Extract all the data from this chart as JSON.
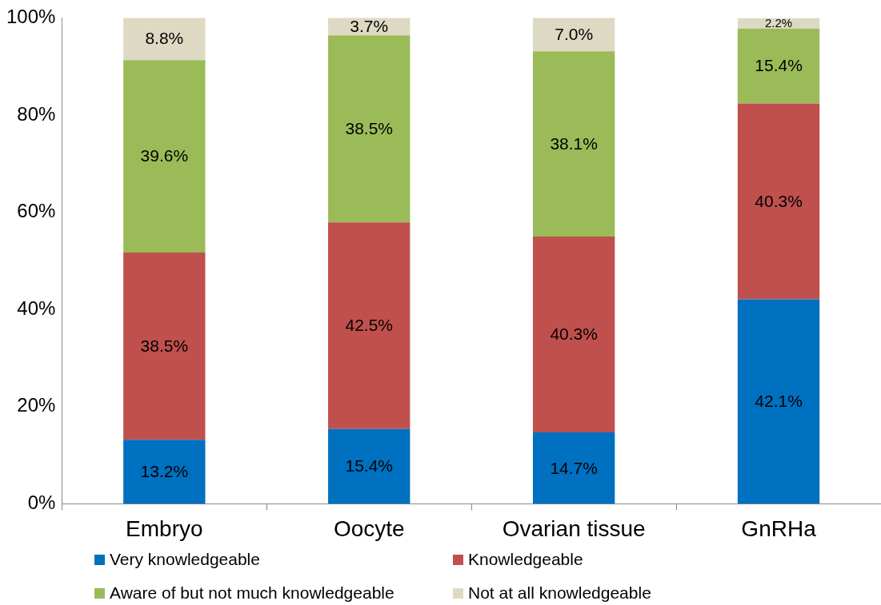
{
  "chart_data": {
    "type": "bar",
    "stacked": true,
    "categories": [
      "Embryo",
      "Oocyte",
      "Ovarian tissue",
      "GnRHa"
    ],
    "series": [
      {
        "name": "Very knowledgeable",
        "color": "#0070c0",
        "values": [
          13.2,
          15.4,
          14.7,
          42.1
        ],
        "value_labels": [
          "13.2%",
          "15.4%",
          "14.7%",
          "42.1%"
        ]
      },
      {
        "name": "Knowledgeable",
        "color": "#c0504d",
        "values": [
          38.5,
          42.5,
          40.3,
          40.3
        ],
        "value_labels": [
          "38.5%",
          "42.5%",
          "40.3%",
          "40.3%"
        ]
      },
      {
        "name": "Aware of but not much knowledgeable",
        "color": "#9bbb59",
        "values": [
          39.6,
          38.5,
          38.1,
          15.4
        ],
        "value_labels": [
          "39.6%",
          "38.5%",
          "38.1%",
          "15.4%"
        ]
      },
      {
        "name": "Not at all knowledgeable",
        "color": "#ddd9c3",
        "values": [
          8.8,
          3.7,
          7.0,
          2.2
        ],
        "value_labels": [
          "8.8%",
          "3.7%",
          "7.0%",
          "2.2%"
        ]
      }
    ],
    "ylim": [
      0,
      100
    ],
    "yticks": [
      {
        "value": 0,
        "label": "0%"
      },
      {
        "value": 20,
        "label": "20%"
      },
      {
        "value": 40,
        "label": "40%"
      },
      {
        "value": 60,
        "label": "60%"
      },
      {
        "value": 80,
        "label": "80%"
      },
      {
        "value": 100,
        "label": "100%"
      }
    ],
    "grid": false,
    "legend": "bottom"
  }
}
